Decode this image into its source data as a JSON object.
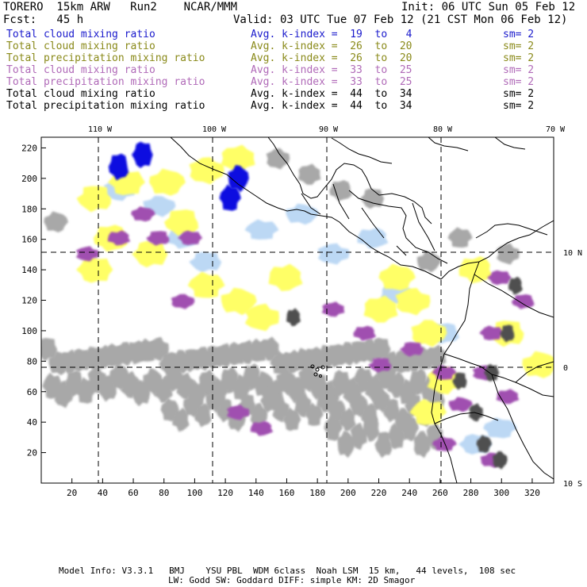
{
  "header": {
    "model": "TORERO  15km ARW   Run2    NCAR/MMM",
    "init": "Init: 06 UTC Sun 05 Feb 12",
    "fcst": "Fcst:   45 h",
    "valid": "Valid: 03 UTC Tue 07 Feb 12 (21 CST Mon 06 Feb 12)"
  },
  "legend": [
    {
      "field": "Total cloud mixing ratio",
      "index": "Avg. k-index =  19  to   4",
      "sm": "sm= 2",
      "color": "#1a1acc"
    },
    {
      "field": "Total cloud mixing ratio",
      "index": "Avg. k-index =  26  to  20",
      "sm": "sm= 2",
      "color": "#8a8a1a"
    },
    {
      "field": "Total precipitation mixing ratio",
      "index": "Avg. k-index =  26  to  20",
      "sm": "sm= 2",
      "color": "#8a8a1a"
    },
    {
      "field": "Total cloud mixing ratio",
      "index": "Avg. k-index =  33  to  25",
      "sm": "sm= 2",
      "color": "#b06ab8"
    },
    {
      "field": "Total precipitation mixing ratio",
      "index": "Avg. k-index =  33  to  25",
      "sm": "sm= 2",
      "color": "#b06ab8"
    },
    {
      "field": "Total cloud mixing ratio",
      "index": "Avg. k-index =  44  to  34",
      "sm": "sm= 2",
      "color": "#000000"
    },
    {
      "field": "Total precipitation mixing ratio",
      "index": "Avg. k-index =  44  to  34",
      "sm": "sm= 2",
      "color": "#000000"
    }
  ],
  "axes": {
    "x_ticks": [
      "20",
      "40",
      "60",
      "80",
      "100",
      "120",
      "140",
      "160",
      "180",
      "200",
      "220",
      "240",
      "260",
      "280",
      "300",
      "320"
    ],
    "y_ticks": [
      "20",
      "40",
      "60",
      "80",
      "100",
      "120",
      "140",
      "160",
      "180",
      "200",
      "220"
    ],
    "lon_labels": [
      "110 W",
      "100 W",
      "90 W",
      "80 W",
      "70 W"
    ],
    "lat_labels": [
      "10 N",
      "0",
      "10 S"
    ]
  },
  "colors": {
    "blue": "#1010e0",
    "light_blue": "#bcd8f4",
    "yellow": "#ffff66",
    "purple": "#a050b0",
    "gray": "#a8a8a8",
    "dark_gray": "#505050"
  },
  "footer": {
    "line1": "Model Info: V3.3.1   BMJ    YSU PBL  WDM 6class  Noah LSM  15 km,   44 levels,  108 sec",
    "line2": "LW: Godd SW: Goddard DIFF: simple KM: 2D Smagor"
  }
}
